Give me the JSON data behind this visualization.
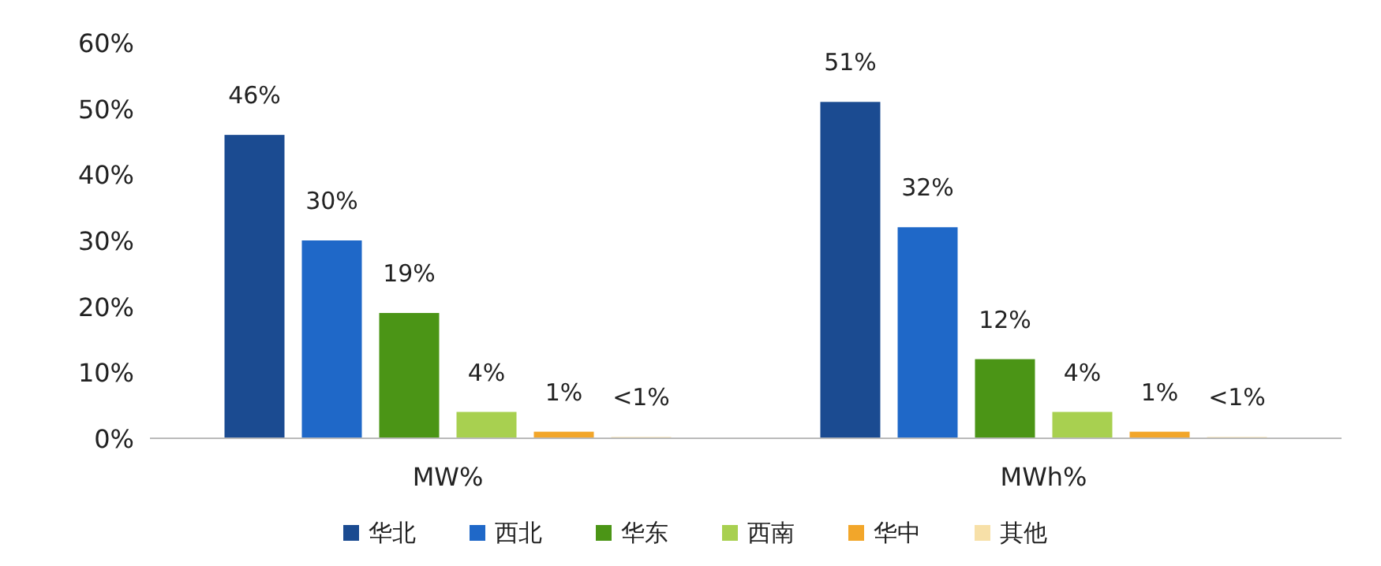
{
  "chart_data": {
    "type": "bar",
    "categories": [
      "MW%",
      "MWh%"
    ],
    "series": [
      {
        "name": "华北",
        "color": "#1b4b91",
        "values": [
          46,
          51
        ],
        "value_labels": [
          "46%",
          "51%"
        ]
      },
      {
        "name": "西北",
        "color": "#1f68c8",
        "values": [
          30,
          32
        ],
        "value_labels": [
          "30%",
          "32%"
        ]
      },
      {
        "name": "华东",
        "color": "#4b9516",
        "values": [
          19,
          12
        ],
        "value_labels": [
          "19%",
          "12%"
        ]
      },
      {
        "name": "西南",
        "color": "#a8d050",
        "values": [
          4,
          4
        ],
        "value_labels": [
          "4%",
          "4%"
        ]
      },
      {
        "name": "华中",
        "color": "#f2a62a",
        "values": [
          1,
          1
        ],
        "value_labels": [
          "1%",
          "1%"
        ]
      },
      {
        "name": "其他",
        "color": "#f7e0a8",
        "values": [
          0.2,
          0.2
        ],
        "value_labels": [
          "<1%",
          "<1%"
        ]
      }
    ],
    "ylim": [
      0,
      60
    ],
    "yticks": [
      {
        "value": 0,
        "label": "0%"
      },
      {
        "value": 10,
        "label": "10%"
      },
      {
        "value": 20,
        "label": "20%"
      },
      {
        "value": 30,
        "label": "30%"
      },
      {
        "value": 40,
        "label": "40%"
      },
      {
        "value": 50,
        "label": "50%"
      },
      {
        "value": 60,
        "label": "60%"
      }
    ],
    "grid": false,
    "legend": "bottom"
  }
}
